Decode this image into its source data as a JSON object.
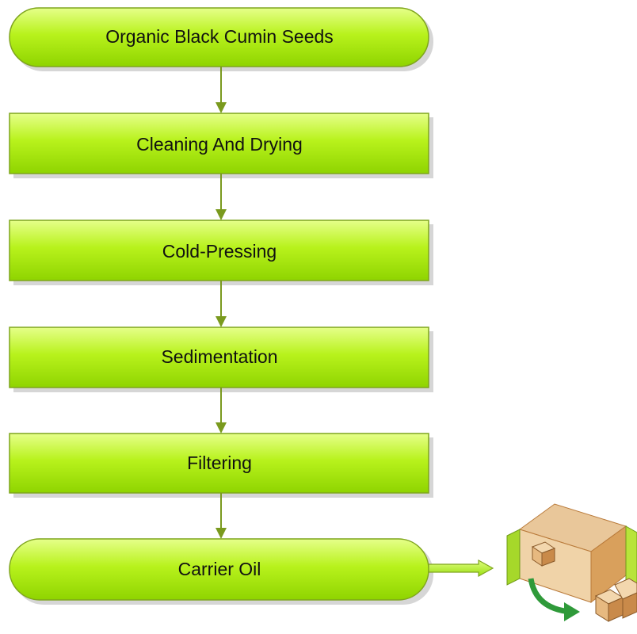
{
  "nodes": [
    {
      "label": "Organic Black Cumin Seeds"
    },
    {
      "label": "Cleaning And Drying"
    },
    {
      "label": "Cold-Pressing"
    },
    {
      "label": "Sedimentation"
    },
    {
      "label": "Filtering"
    },
    {
      "label": "Carrier Oil"
    }
  ]
}
